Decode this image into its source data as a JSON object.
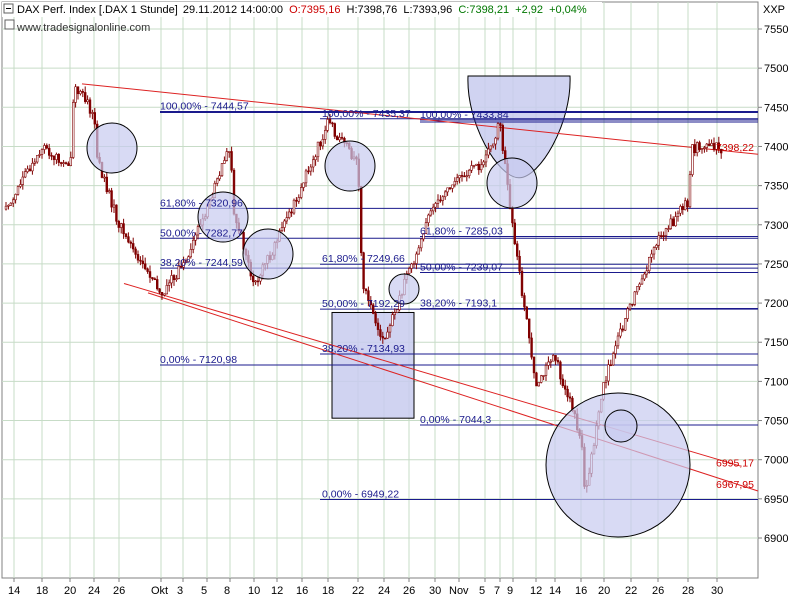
{
  "header": {
    "instrument": "DAX Perf. Index [.DAX  1 Stunde]",
    "timestamp": "29.11.2012 14:00:00",
    "open": "O:7395,16",
    "high": "H:7398,76",
    "low": "L:7393,96",
    "close": "C:7398,21",
    "change": "+2,92",
    "change_pct": "+0,04%",
    "symbol": "XXP",
    "website": "www.tradesignalonline.com"
  },
  "colors": {
    "candle": "#800000",
    "fib_line": "#1a1a8c",
    "trend_line": "#dd2222",
    "shade": "#c8cbef",
    "grid": "#c7dcc7"
  },
  "chart_data": {
    "type": "candlestick",
    "title": "DAX Perf. Index [.DAX  1 Stunde]",
    "y_axis": {
      "range": [
        6870,
        7580
      ],
      "ticks": [
        "7550",
        "7500",
        "7450",
        "7400",
        "7350",
        "7300",
        "7250",
        "7200",
        "7150",
        "7100",
        "7050",
        "7000",
        "6950",
        "6900"
      ]
    },
    "x_axis": {
      "ticks": [
        "14",
        "18",
        "20",
        "24",
        "26",
        "Okt",
        "3",
        "5",
        "8",
        "10",
        "12",
        "16",
        "18",
        "22",
        "24",
        "26",
        "30",
        "Nov",
        "5",
        "7",
        "9",
        "12",
        "14",
        "16",
        "20",
        "22",
        "26",
        "28",
        "30"
      ]
    },
    "price_path": [
      [
        "14",
        7320
      ],
      [
        "18",
        7400
      ],
      [
        "20",
        7370
      ],
      [
        "20",
        7480
      ],
      [
        "24",
        7440
      ],
      [
        "24",
        7380
      ],
      [
        "26",
        7300
      ],
      [
        "Okt",
        7210
      ],
      [
        "3",
        7250
      ],
      [
        "5",
        7320
      ],
      [
        "8",
        7400
      ],
      [
        "8",
        7320
      ],
      [
        "10",
        7220
      ],
      [
        "12",
        7280
      ],
      [
        "16",
        7350
      ],
      [
        "18",
        7430
      ],
      [
        "22",
        7380
      ],
      [
        "22",
        7230
      ],
      [
        "24",
        7150
      ],
      [
        "26",
        7240
      ],
      [
        "30",
        7330
      ],
      [
        "Nov",
        7360
      ],
      [
        "5",
        7380
      ],
      [
        "7",
        7430
      ],
      [
        "9",
        7290
      ],
      [
        "12",
        7100
      ],
      [
        "14",
        7130
      ],
      [
        "16",
        7030
      ],
      [
        "16",
        6950
      ],
      [
        "20",
        7100
      ],
      [
        "22",
        7200
      ],
      [
        "26",
        7280
      ],
      [
        "28",
        7330
      ],
      [
        "28",
        7398
      ]
    ],
    "fib_labels": [
      {
        "text": "100,00% - 7444,57",
        "value": 7444.57
      },
      {
        "text": "61,80% - 7320,96",
        "value": 7320.96
      },
      {
        "text": "50,00% - 7282,77",
        "value": 7282.77
      },
      {
        "text": "38,20% - 7244,59",
        "value": 7244.59
      },
      {
        "text": "0,00% - 7120,98",
        "value": 7120.98
      },
      {
        "text": "100,00% - 7435,37",
        "value": 7435.37
      },
      {
        "text": "61,80% - 7249,66",
        "value": 7249.66
      },
      {
        "text": "50,00% - 7192,29",
        "value": 7192.29
      },
      {
        "text": "38,20% - 7134,93",
        "value": 7134.93
      },
      {
        "text": "0,00% - 6949,22",
        "value": 6949.22
      },
      {
        "text": "100,00% - 7433,84",
        "value": 7433.84
      },
      {
        "text": "61,80% - 7285,03",
        "value": 7285.03
      },
      {
        "text": "50,00% - 7239,07",
        "value": 7239.07
      },
      {
        "text": "38,20% - 7193,1",
        "value": 7193.1
      },
      {
        "text": "0,00% - 7044,3",
        "value": 7044.3
      }
    ],
    "fib_levels": [
      7444.57,
      7435.37,
      7433.84,
      7320.96,
      7285.03,
      7282.77,
      7249.66,
      7244.59,
      7239.07,
      7193.1,
      7192.29,
      7134.93,
      7120.98,
      7044.3,
      6949.22
    ],
    "price_labels": [
      {
        "text": "7398,22",
        "value": 7398.22
      },
      {
        "text": "6995,17",
        "value": 6995.17
      },
      {
        "text": "6967,95",
        "value": 6967.95
      }
    ],
    "grid": true
  }
}
